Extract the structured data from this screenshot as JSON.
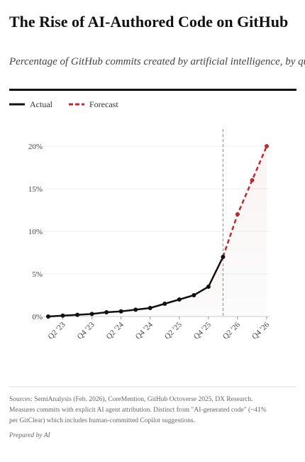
{
  "chart_data": {
    "type": "line",
    "title": "The Rise of AI-Authored Code on GitHub",
    "subtitle": "Percentage of GitHub commits created by artificial intelligence, by quarter",
    "categories": [
      null,
      "Q2 '23",
      null,
      "Q4 '23",
      null,
      "Q2 '24",
      null,
      "Q4 '24",
      null,
      "Q2 '25",
      null,
      "Q4 '25",
      null,
      "Q2 '26",
      null,
      "Q4 '26"
    ],
    "series": [
      {
        "name": "Actual",
        "color": "#111111",
        "values": [
          0,
          0.1,
          0.2,
          0.3,
          0.5,
          0.6,
          0.8,
          1.0,
          1.5,
          2.0,
          2.5,
          3.5,
          7.0,
          null,
          null,
          null
        ]
      },
      {
        "name": "Forecast",
        "color": "#c0282d",
        "values": [
          null,
          null,
          null,
          null,
          null,
          null,
          null,
          null,
          null,
          null,
          null,
          null,
          7.0,
          12,
          16,
          20
        ]
      }
    ],
    "ylim": [
      0,
      22
    ],
    "yticks": [
      {
        "value": 0,
        "label": "0%"
      },
      {
        "value": 5,
        "label": "5%"
      },
      {
        "value": 10,
        "label": "10%"
      },
      {
        "value": 15,
        "label": "15%"
      },
      {
        "value": 20,
        "label": "20%"
      }
    ],
    "grid": true,
    "legend": "top-left",
    "sources": [
      "Sources: SemiAnalysis (Feb. 2026), CoreMention, GitHub Octoverse 2025, DX Research.",
      "Measures commits with explicit AI agent attribution. Distinct from \"AI-generated code\" (~41%",
      "per GitClear) which includes human-committed Copilot suggestions."
    ],
    "credit": "Prepared by AI"
  }
}
